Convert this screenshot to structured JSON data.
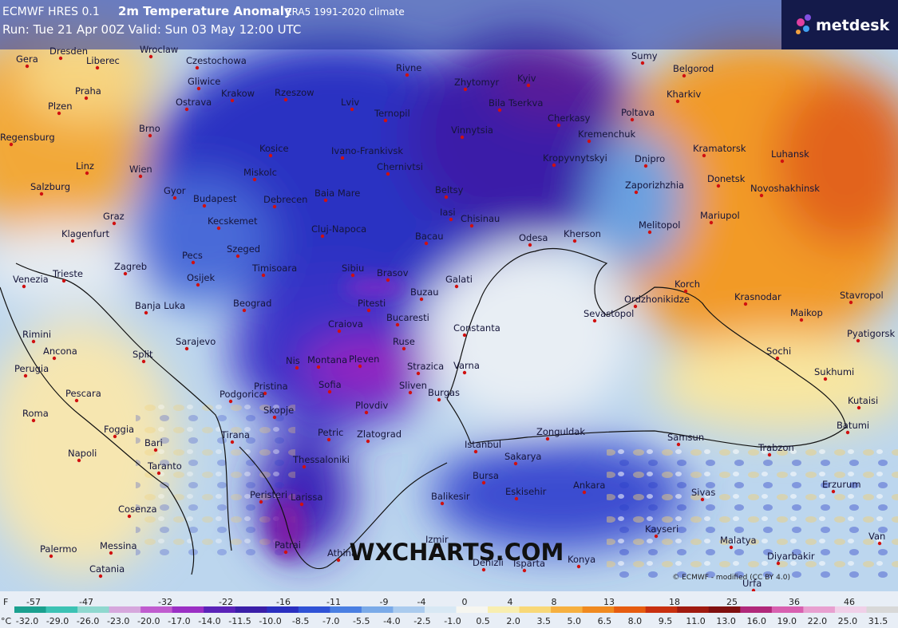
{
  "header": {
    "model": "ECMWF HRES 0.1",
    "title": "2m Temperature Anomaly",
    "climate": "ERA5 1991-2020 climate",
    "run": "Run: Tue 21 Apr 00Z Valid: Sun 03 May 12:00 UTC"
  },
  "logo": "metdesk",
  "watermark": "WXCHARTS.COM",
  "credit": "© ECMWF - modified (CC BY 4.0)",
  "cities": [
    "Gera",
    "Dresden",
    "Liberec",
    "Wroclaw",
    "Czestochowa",
    "Sumy",
    "Belgorod",
    "Praha",
    "Gliwice",
    "Rivne",
    "Zhytomyr",
    "Kyiv",
    "Plzen",
    "Ostrava",
    "Krakow",
    "Rzeszow",
    "Lviv",
    "Kharkiv",
    "Bila Tserkva",
    "Poltava",
    "Ternopil",
    "Cherkasy",
    "Brno",
    "Vinnytsia",
    "Kremenchuk",
    "Regensburg",
    "Kosice",
    "Ivano-Frankivsk",
    "Kramatorsk",
    "Luhansk",
    "Chernivtsi",
    "Dnipro",
    "Kropyvnytskyi",
    "Linz",
    "Wien",
    "Miskolc",
    "Donetsk",
    "Salzburg",
    "Gyor",
    "Budapest",
    "Debrecen",
    "Baia Mare",
    "Beltsy",
    "Zaporizhzhia",
    "Novoshakhinsk",
    "Graz",
    "Kecskemet",
    "Iasi",
    "Chisinau",
    "Mariupol",
    "Klagenfurt",
    "Cluj-Napoca",
    "Melitopol",
    "Bacau",
    "Odesa",
    "Kherson",
    "Pecs",
    "Szeged",
    "Zagreb",
    "Sibiu",
    "Timisoara",
    "Brasov",
    "Venezia",
    "Trieste",
    "Osijek",
    "Galati",
    "Korch",
    "Buzau",
    "Banja Luka",
    "Beograd",
    "Pitesti",
    "Ordzhonikidze",
    "Krasnodar",
    "Stavropol",
    "Sevastopol",
    "Bucaresti",
    "Maikop",
    "Craiova",
    "Constanta",
    "Rimini",
    "Pyatigorsk",
    "Sarajevo",
    "Ruse",
    "Ancona",
    "Sochi",
    "Split",
    "Nis",
    "Montana",
    "Pleven",
    "Strazica",
    "Varna",
    "Perugia",
    "Sukhumi",
    "Pristina",
    "Sofia",
    "Sliven",
    "Burgas",
    "Pescara",
    "Podgorica",
    "Kutaisi",
    "Skopje",
    "Plovdiv",
    "Roma",
    "Batumi",
    "Foggia",
    "Petric",
    "Zonguldak",
    "Tirana",
    "Zlatograd",
    "Samsun",
    "Bari",
    "Istanbul",
    "Trabzon",
    "Napoli",
    "Thessaloniki",
    "Sakarya",
    "Taranto",
    "Bursa",
    "Erzurum",
    "Ankara",
    "Eskisehir",
    "Sivas",
    "Balikesir",
    "Cosenza",
    "Peristeri",
    "Larissa",
    "Kayseri",
    "Izmir",
    "Palermo",
    "Messina",
    "Malatya",
    "Van",
    "Patrai",
    "Athina",
    "Diyarbakir",
    "Denizli",
    "Isparta",
    "Konya",
    "Catania",
    "Urfa"
  ],
  "colorbar": {
    "fahrenheit_unit": "F",
    "fahrenheit": [
      -57,
      -47,
      -32,
      -22,
      -16,
      -11,
      -9,
      -4,
      0,
      4,
      8,
      13,
      18,
      25,
      36,
      46
    ],
    "celsius_unit": "°C",
    "celsius": [
      "-32.0",
      "-29.0",
      "-26.0",
      "-23.0",
      "-20.0",
      "-17.0",
      "-14.0",
      "-11.5",
      "-10.0",
      "-8.5",
      "-7.0",
      "-5.5",
      "-4.0",
      "-2.5",
      "-1.0",
      "0.5",
      "2.0",
      "3.5",
      "5.0",
      "6.5",
      "8.0",
      "9.5",
      "11.0",
      "13.0",
      "16.0",
      "19.0",
      "22.0",
      "25.0",
      "31.5"
    ],
    "colors": [
      "#1aa08f",
      "#3cc2b4",
      "#8fd8cf",
      "#d6a7dd",
      "#c05ccf",
      "#9a2fc4",
      "#5a22b8",
      "#3a1ea8",
      "#2a2fc0",
      "#2f52d6",
      "#4a7fe2",
      "#7aaae8",
      "#aacbee",
      "#d8e8f4",
      "#f6f6f0",
      "#f8eeb0",
      "#f8d878",
      "#f6b040",
      "#f08a20",
      "#e65c10",
      "#c83010",
      "#a01a10",
      "#801010",
      "#b0287a",
      "#d860b0",
      "#e8a0d0",
      "#f0d0e8",
      "#d8d8d8"
    ]
  }
}
